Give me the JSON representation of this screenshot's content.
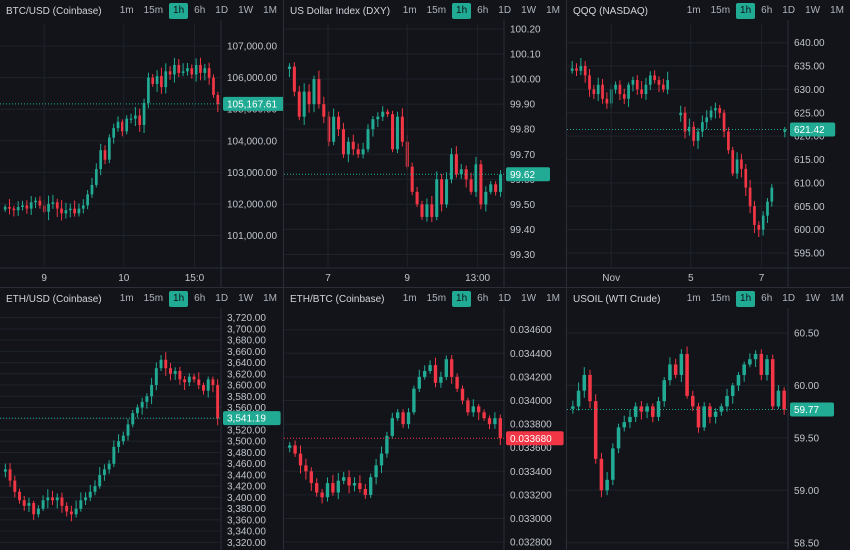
{
  "colors": {
    "up": "#22ab94",
    "down": "#f23645",
    "grid": "#1e222b",
    "axis": "#2a2e39"
  },
  "timeframes": [
    "1m",
    "15m",
    "1h",
    "6h",
    "1D",
    "1W",
    "1M"
  ],
  "active_timeframe": "1h",
  "chart_data": [
    {
      "type": "candlestick",
      "title": "BTC/USD (Coinbase)",
      "ylim": [
        100000,
        107700
      ],
      "y_ticks": [
        "101,000.00",
        "102,000.00",
        "103,000.00",
        "104,000.00",
        "105,000.00",
        "106,000.00",
        "107,000.00"
      ],
      "y_tick_values": [
        101000,
        102000,
        103000,
        104000,
        105000,
        106000,
        107000
      ],
      "x_ticks": [
        "9",
        "10",
        "15:0"
      ],
      "last_price": 105167.61,
      "last_label": "105,167.61",
      "last_color": "up",
      "closes": [
        101900,
        101850,
        101800,
        101900,
        101950,
        101850,
        102050,
        102100,
        101950,
        101750,
        102000,
        102050,
        101850,
        101700,
        101800,
        101850,
        101700,
        101850,
        101950,
        102300,
        102600,
        103100,
        103700,
        103400,
        104100,
        104400,
        104600,
        104300,
        104700,
        104700,
        104800,
        104500,
        105200,
        106000,
        105800,
        106050,
        105700,
        106200,
        106100,
        106400,
        106150,
        106200,
        106300,
        106100,
        106400,
        106150,
        106300,
        106000,
        105450,
        105167.61
      ]
    },
    {
      "type": "candlestick",
      "title": "US Dollar Index (DXY)",
      "ylim": [
        99.25,
        100.22
      ],
      "y_ticks": [
        "99.30",
        "99.40",
        "99.50",
        "99.60",
        "99.70",
        "99.80",
        "99.90",
        "100.00",
        "100.10",
        "100.20"
      ],
      "y_tick_values": [
        99.3,
        99.4,
        99.5,
        99.6,
        99.7,
        99.8,
        99.9,
        100.0,
        100.1,
        100.2
      ],
      "x_ticks": [
        "7",
        "9",
        "13:00"
      ],
      "last_price": 99.62,
      "last_label": "99.62",
      "last_color": "up",
      "closes": [
        100.05,
        99.95,
        99.85,
        99.95,
        99.9,
        100.0,
        99.9,
        99.85,
        99.75,
        99.85,
        99.8,
        99.7,
        99.75,
        99.72,
        99.7,
        99.72,
        99.8,
        99.84,
        99.85,
        99.87,
        99.86,
        99.72,
        99.85,
        99.75,
        99.65,
        99.55,
        99.5,
        99.45,
        99.5,
        99.45,
        99.6,
        99.5,
        99.6,
        99.7,
        99.62,
        99.64,
        99.6,
        99.55,
        99.66,
        99.5,
        99.55,
        99.58,
        99.55,
        99.62
      ]
    },
    {
      "type": "candlestick",
      "title": "QQQ (NASDAQ)",
      "ylim": [
        592,
        644
      ],
      "y_ticks": [
        "595.00",
        "600.00",
        "605.00",
        "610.00",
        "615.00",
        "620.00",
        "625.00",
        "630.00",
        "635.00",
        "640.00"
      ],
      "y_tick_values": [
        595,
        600,
        605,
        610,
        615,
        620,
        625,
        630,
        635,
        640
      ],
      "x_ticks": [
        "Nov",
        "5",
        "7"
      ],
      "last_price": 621.42,
      "last_label": "621.42",
      "last_color": "up",
      "closes": [
        634.5,
        634,
        635,
        633,
        630,
        629,
        631,
        628,
        627,
        630,
        631,
        629,
        628,
        631,
        632,
        630,
        629,
        631,
        633,
        632,
        631,
        630,
        632,
        null,
        null,
        625,
        621,
        622,
        619,
        621,
        623,
        624,
        625.5,
        626,
        625,
        621,
        617,
        612,
        615,
        613,
        609,
        605,
        601,
        600,
        603,
        606,
        609,
        null,
        null,
        621.42
      ]
    },
    {
      "type": "candlestick",
      "title": "ETH/USD (Coinbase)",
      "ylim": [
        3310,
        3730
      ],
      "y_ticks": [
        "3,320.00",
        "3,340.00",
        "3,360.00",
        "3,380.00",
        "3,400.00",
        "3,420.00",
        "3,440.00",
        "3,460.00",
        "3,480.00",
        "3,500.00",
        "3,520.00",
        "3,540.00",
        "3,560.00",
        "3,580.00",
        "3,600.00",
        "3,620.00",
        "3,640.00",
        "3,660.00",
        "3,680.00",
        "3,700.00",
        "3,720.00"
      ],
      "y_tick_values": [
        3320,
        3340,
        3360,
        3380,
        3400,
        3420,
        3440,
        3460,
        3480,
        3500,
        3520,
        3540,
        3560,
        3580,
        3600,
        3620,
        3640,
        3660,
        3680,
        3700,
        3720
      ],
      "x_ticks": [],
      "last_price": 3541.19,
      "last_label": "3,541.19",
      "last_color": "up",
      "closes": [
        3450,
        3430,
        3410,
        3395,
        3385,
        3390,
        3370,
        3380,
        3395,
        3400,
        3395,
        3400,
        3385,
        3375,
        3370,
        3380,
        3395,
        3400,
        3410,
        3420,
        3440,
        3450,
        3460,
        3490,
        3500,
        3510,
        3530,
        3550,
        3560,
        3570,
        3580,
        3600,
        3630,
        3645,
        3630,
        3620,
        3625,
        3610,
        3605,
        3615,
        3610,
        3600,
        3590,
        3610,
        3600,
        3541.19
      ]
    },
    {
      "type": "candlestick",
      "title": "ETH/BTC (Coinbase)",
      "ylim": [
        0.03275,
        0.03475
      ],
      "y_ticks": [
        "0.032800",
        "0.033000",
        "0.033200",
        "0.033400",
        "0.033600",
        "0.033800",
        "0.034000",
        "0.034200",
        "0.034400",
        "0.034600"
      ],
      "y_tick_values": [
        0.0328,
        0.033,
        0.0332,
        0.0334,
        0.0336,
        0.0338,
        0.034,
        0.0342,
        0.0344,
        0.0346
      ],
      "x_ticks": [],
      "last_price": 0.03368,
      "last_label": "0.033680",
      "last_color": "down",
      "closes": [
        0.03362,
        0.03355,
        0.03345,
        0.0334,
        0.0333,
        0.03322,
        0.03318,
        0.0333,
        0.03322,
        0.03332,
        0.03335,
        0.03328,
        0.0333,
        0.03325,
        0.0332,
        0.03335,
        0.03345,
        0.03355,
        0.0337,
        0.03385,
        0.0339,
        0.0338,
        0.0339,
        0.0341,
        0.0342,
        0.03425,
        0.0343,
        0.03415,
        0.0342,
        0.03435,
        0.0342,
        0.0341,
        0.034,
        0.0339,
        0.03395,
        0.0339,
        0.03385,
        0.0338,
        0.03385,
        0.03368
      ]
    },
    {
      "type": "candlestick",
      "title": "USOIL (WTI Crude)",
      "ylim": [
        58.45,
        60.7
      ],
      "y_ticks": [
        "58.50",
        "59.00",
        "59.50",
        "60.00",
        "60.50"
      ],
      "y_tick_values": [
        58.5,
        59.0,
        59.5,
        60.0,
        60.5
      ],
      "x_ticks": [],
      "last_price": 59.77,
      "last_label": "59.77",
      "last_color": "up",
      "closes": [
        59.8,
        59.95,
        60.1,
        59.85,
        59.3,
        59.0,
        59.1,
        59.4,
        59.6,
        59.65,
        59.7,
        59.8,
        59.75,
        59.8,
        59.7,
        59.85,
        60.05,
        60.2,
        60.1,
        60.3,
        59.9,
        59.8,
        59.6,
        59.8,
        59.7,
        59.75,
        59.8,
        59.9,
        60.0,
        60.1,
        60.2,
        60.25,
        60.3,
        60.1,
        60.25,
        59.8,
        59.95,
        59.77
      ]
    }
  ]
}
